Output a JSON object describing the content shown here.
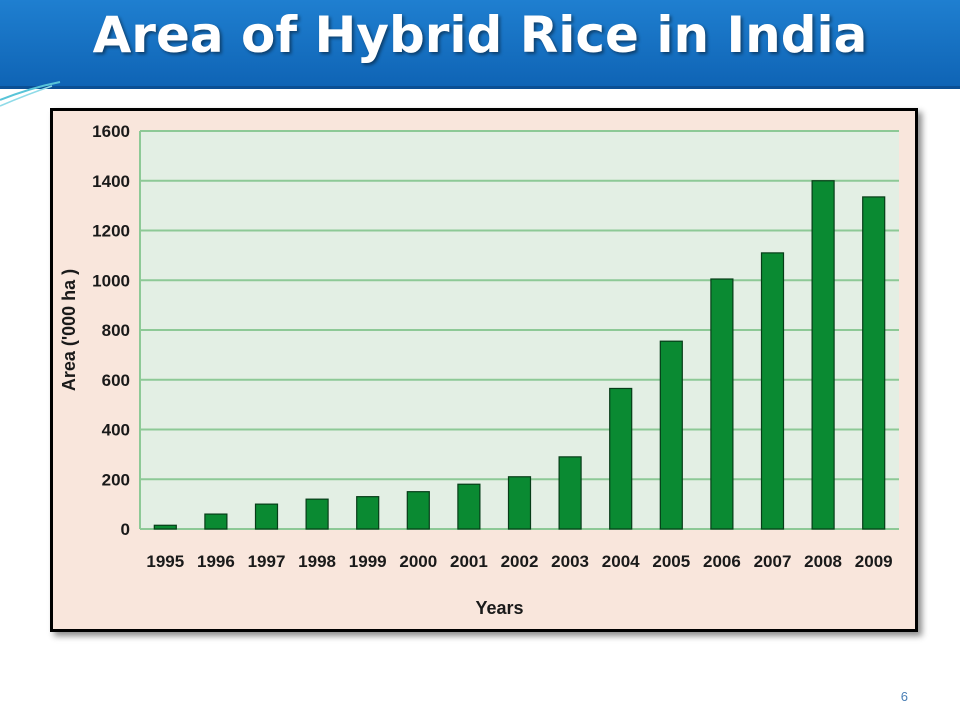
{
  "slide": {
    "title": "Area of Hybrid Rice in India",
    "page_number": "6"
  },
  "colors": {
    "title_bar": "#1a73c8",
    "chart_background": "#f9e6dc",
    "plot_area": "#e3efe4",
    "gridline": "#8dc996",
    "bar": "#0a8a32",
    "axis_text": "#1a1a1a"
  },
  "chart_data": {
    "type": "bar",
    "title": "",
    "xlabel": "Years",
    "ylabel": "Area ('000 ha )",
    "ylim": [
      0,
      1600
    ],
    "yticks": [
      0,
      200,
      400,
      600,
      800,
      1000,
      1200,
      1400,
      1600
    ],
    "grid": true,
    "legend": "none",
    "categories": [
      "1995",
      "1996",
      "1997",
      "1998",
      "1999",
      "2000",
      "2001",
      "2002",
      "2003",
      "2004",
      "2005",
      "2006",
      "2007",
      "2008",
      "2009"
    ],
    "values": [
      15,
      60,
      100,
      120,
      130,
      150,
      180,
      210,
      290,
      565,
      755,
      1005,
      1110,
      1400,
      1335
    ]
  }
}
